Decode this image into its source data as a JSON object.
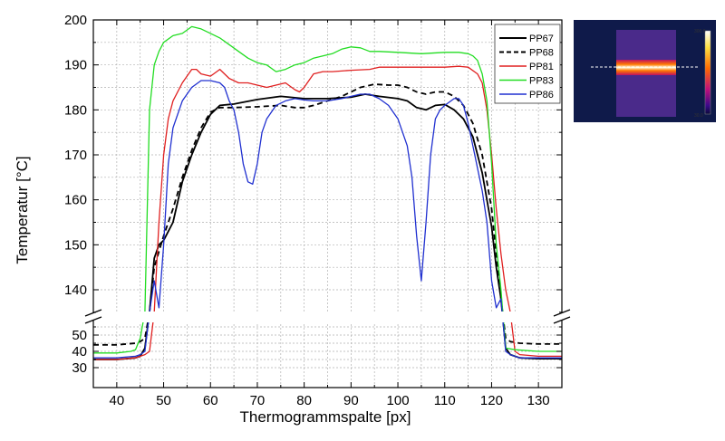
{
  "chart_data": {
    "type": "line",
    "xlabel": "Thermogrammspalte [px]",
    "ylabel": "Temperatur [°C]",
    "xlim": [
      35,
      135
    ],
    "xticks": [
      40,
      50,
      60,
      70,
      80,
      90,
      100,
      110,
      120,
      130
    ],
    "y_axis_break": true,
    "ylim_lower": [
      30,
      55
    ],
    "ylim_upper": [
      133,
      200
    ],
    "yticks_lower": [
      30,
      40,
      50
    ],
    "yticks_upper": [
      140,
      150,
      160,
      170,
      180,
      190,
      200
    ],
    "grid": true,
    "legend_position": "top-right",
    "series": [
      {
        "name": "PP67",
        "color": "#000000",
        "dash": "solid",
        "points": [
          [
            35,
            35
          ],
          [
            40,
            35
          ],
          [
            44,
            36
          ],
          [
            45,
            37
          ],
          [
            46,
            42
          ],
          [
            47,
            135
          ],
          [
            48,
            147
          ],
          [
            49,
            150
          ],
          [
            50,
            151
          ],
          [
            52,
            155
          ],
          [
            54,
            164
          ],
          [
            56,
            170
          ],
          [
            58,
            175
          ],
          [
            60,
            179
          ],
          [
            62,
            181
          ],
          [
            65,
            181.3
          ],
          [
            70,
            182.3
          ],
          [
            75,
            183
          ],
          [
            80,
            182.5
          ],
          [
            85,
            182.5
          ],
          [
            90,
            182.8
          ],
          [
            93,
            183.5
          ],
          [
            96,
            183
          ],
          [
            100,
            182.5
          ],
          [
            102,
            182
          ],
          [
            104,
            180.5
          ],
          [
            106,
            180
          ],
          [
            108,
            181
          ],
          [
            110,
            181.2
          ],
          [
            112,
            180
          ],
          [
            114,
            178
          ],
          [
            116,
            174
          ],
          [
            118,
            166
          ],
          [
            120,
            154
          ],
          [
            121,
            145
          ],
          [
            122,
            138
          ],
          [
            123,
            42
          ],
          [
            124,
            38
          ],
          [
            126,
            36
          ],
          [
            130,
            35.5
          ],
          [
            135,
            35.5
          ]
        ]
      },
      {
        "name": "PP68",
        "color": "#000000",
        "dash": "dashed",
        "points": [
          [
            35,
            44
          ],
          [
            40,
            44
          ],
          [
            44,
            45
          ],
          [
            45,
            46
          ],
          [
            46,
            48
          ],
          [
            47,
            135
          ],
          [
            48,
            145
          ],
          [
            50,
            152
          ],
          [
            52,
            158
          ],
          [
            54,
            165
          ],
          [
            56,
            171
          ],
          [
            58,
            176
          ],
          [
            60,
            179.5
          ],
          [
            62,
            180.5
          ],
          [
            65,
            180.5
          ],
          [
            70,
            180.7
          ],
          [
            75,
            181
          ],
          [
            78,
            180.5
          ],
          [
            80,
            180.5
          ],
          [
            82,
            181
          ],
          [
            85,
            182
          ],
          [
            88,
            183
          ],
          [
            90,
            184
          ],
          [
            92,
            185
          ],
          [
            95,
            185.7
          ],
          [
            98,
            185.5
          ],
          [
            100,
            185.5
          ],
          [
            102,
            185
          ],
          [
            104,
            184
          ],
          [
            106,
            183.5
          ],
          [
            108,
            184
          ],
          [
            110,
            184
          ],
          [
            112,
            183
          ],
          [
            114,
            181
          ],
          [
            116,
            177
          ],
          [
            118,
            170
          ],
          [
            120,
            158
          ],
          [
            121,
            148
          ],
          [
            122,
            138
          ],
          [
            123,
            48
          ],
          [
            124,
            46
          ],
          [
            126,
            45
          ],
          [
            130,
            44.5
          ],
          [
            135,
            44.5
          ]
        ]
      },
      {
        "name": "PP81",
        "color": "#e02020",
        "dash": "solid",
        "points": [
          [
            35,
            35
          ],
          [
            40,
            35
          ],
          [
            44,
            36
          ],
          [
            46,
            38
          ],
          [
            47,
            40
          ],
          [
            48,
            135
          ],
          [
            49,
            155
          ],
          [
            50,
            170
          ],
          [
            51,
            178
          ],
          [
            52,
            182
          ],
          [
            54,
            186
          ],
          [
            56,
            189
          ],
          [
            57,
            189
          ],
          [
            58,
            188
          ],
          [
            60,
            187.5
          ],
          [
            62,
            189
          ],
          [
            64,
            187
          ],
          [
            66,
            186
          ],
          [
            68,
            186
          ],
          [
            70,
            185.5
          ],
          [
            72,
            185
          ],
          [
            74,
            185.5
          ],
          [
            76,
            186
          ],
          [
            78,
            184.5
          ],
          [
            79,
            184
          ],
          [
            80,
            185
          ],
          [
            82,
            188
          ],
          [
            84,
            188.5
          ],
          [
            86,
            188.5
          ],
          [
            90,
            188.8
          ],
          [
            94,
            189
          ],
          [
            96,
            189.5
          ],
          [
            100,
            189.5
          ],
          [
            105,
            189.5
          ],
          [
            110,
            189.5
          ],
          [
            113,
            189.7
          ],
          [
            115,
            189.5
          ],
          [
            117,
            188
          ],
          [
            118,
            186
          ],
          [
            119,
            180
          ],
          [
            120,
            170
          ],
          [
            121,
            158
          ],
          [
            122,
            148
          ],
          [
            123,
            140
          ],
          [
            124,
            135
          ],
          [
            125,
            40
          ],
          [
            126,
            38
          ],
          [
            130,
            37
          ],
          [
            135,
            37
          ]
        ]
      },
      {
        "name": "PP83",
        "color": "#22dd22",
        "dash": "solid",
        "points": [
          [
            35,
            39
          ],
          [
            40,
            39
          ],
          [
            43,
            40
          ],
          [
            44,
            41
          ],
          [
            45,
            48
          ],
          [
            46,
            135
          ],
          [
            47,
            180
          ],
          [
            48,
            190
          ],
          [
            49,
            193
          ],
          [
            50,
            195
          ],
          [
            52,
            196.5
          ],
          [
            54,
            197
          ],
          [
            56,
            198.5
          ],
          [
            58,
            198
          ],
          [
            60,
            197
          ],
          [
            62,
            196
          ],
          [
            64,
            194.5
          ],
          [
            66,
            193
          ],
          [
            68,
            191.5
          ],
          [
            70,
            190.5
          ],
          [
            72,
            190
          ],
          [
            74,
            188.5
          ],
          [
            76,
            189
          ],
          [
            78,
            190
          ],
          [
            80,
            190.5
          ],
          [
            82,
            191.5
          ],
          [
            84,
            192
          ],
          [
            86,
            192.5
          ],
          [
            88,
            193.5
          ],
          [
            90,
            194
          ],
          [
            92,
            193.8
          ],
          [
            94,
            193
          ],
          [
            96,
            193
          ],
          [
            100,
            192.8
          ],
          [
            105,
            192.5
          ],
          [
            110,
            192.8
          ],
          [
            113,
            192.8
          ],
          [
            115,
            192.5
          ],
          [
            116,
            192
          ],
          [
            117,
            191
          ],
          [
            118,
            188
          ],
          [
            119,
            182
          ],
          [
            120,
            168
          ],
          [
            121,
            150
          ],
          [
            122,
            140
          ],
          [
            123,
            42
          ],
          [
            125,
            41
          ],
          [
            130,
            40
          ],
          [
            135,
            40
          ]
        ]
      },
      {
        "name": "PP86",
        "color": "#2030d0",
        "dash": "solid",
        "points": [
          [
            35,
            36
          ],
          [
            40,
            36
          ],
          [
            44,
            37
          ],
          [
            45,
            38
          ],
          [
            46,
            40
          ],
          [
            47,
            135
          ],
          [
            48,
            142
          ],
          [
            49,
            136
          ],
          [
            50,
            150
          ],
          [
            51,
            168
          ],
          [
            52,
            176
          ],
          [
            54,
            182
          ],
          [
            56,
            185
          ],
          [
            58,
            186.5
          ],
          [
            60,
            186.5
          ],
          [
            62,
            186
          ],
          [
            63,
            185
          ],
          [
            64,
            182
          ],
          [
            65,
            180
          ],
          [
            66,
            175
          ],
          [
            67,
            168
          ],
          [
            68,
            164
          ],
          [
            69,
            163.5
          ],
          [
            70,
            168
          ],
          [
            71,
            175
          ],
          [
            72,
            178
          ],
          [
            74,
            181
          ],
          [
            76,
            182
          ],
          [
            78,
            182.5
          ],
          [
            80,
            182.2
          ],
          [
            82,
            182
          ],
          [
            85,
            182
          ],
          [
            88,
            182.5
          ],
          [
            90,
            183
          ],
          [
            92,
            183.5
          ],
          [
            94,
            183.5
          ],
          [
            96,
            182.5
          ],
          [
            98,
            181
          ],
          [
            100,
            178
          ],
          [
            102,
            172
          ],
          [
            103,
            165
          ],
          [
            104,
            152
          ],
          [
            105,
            142
          ],
          [
            106,
            155
          ],
          [
            107,
            170
          ],
          [
            108,
            178
          ],
          [
            109,
            180
          ],
          [
            110,
            181
          ],
          [
            112,
            182.5
          ],
          [
            113,
            182.5
          ],
          [
            114,
            181
          ],
          [
            115,
            177
          ],
          [
            116,
            172
          ],
          [
            118,
            162
          ],
          [
            119,
            155
          ],
          [
            120,
            142
          ],
          [
            121,
            136
          ],
          [
            122,
            138
          ],
          [
            123,
            40
          ],
          [
            124,
            38
          ],
          [
            126,
            36
          ],
          [
            130,
            36
          ],
          [
            135,
            36
          ]
        ]
      }
    ]
  },
  "inset": {
    "scale_max": "300.0",
    "scale_min": "30.0"
  }
}
